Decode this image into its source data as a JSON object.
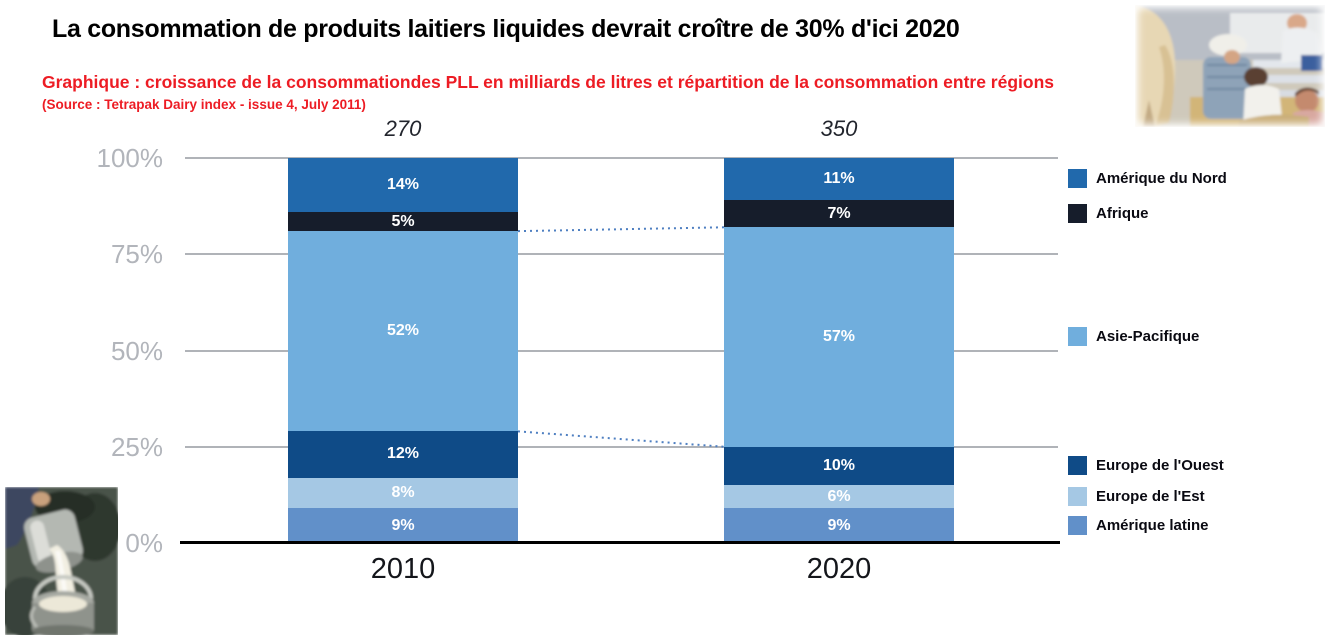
{
  "title": "La consommation de produits laitiers liquides devrait croître de 30% d'ici 2020",
  "subtitle": "Graphique : croissance de la consommationdes PLL en milliards de litres et répartition de la consommation entre régions",
  "source": "(Source : Tetrapak Dairy index - issue 4, July 2011)",
  "images": {
    "top_right": "farm-milking-photo",
    "bottom_left": "milk-pail-photo"
  },
  "chart_data": {
    "type": "bar",
    "subtype": "stacked-100-percent",
    "title": "",
    "categories": [
      "2010",
      "2020"
    ],
    "bar_totals": [
      "270",
      "350"
    ],
    "series": [
      {
        "name": "Amérique du Nord",
        "color": "#2169AC",
        "values": [
          14,
          11
        ]
      },
      {
        "name": "Afrique",
        "color": "#161D2B",
        "values": [
          5,
          7
        ]
      },
      {
        "name": "Asie-Pacifique",
        "color": "#70AEDD",
        "values": [
          52,
          57
        ]
      },
      {
        "name": "Europe de l'Ouest",
        "color": "#0F4B87",
        "values": [
          12,
          10
        ]
      },
      {
        "name": "Europe de l'Est",
        "color": "#A5C8E4",
        "values": [
          8,
          6
        ]
      },
      {
        "name": "Amérique latine",
        "color": "#6190C9",
        "values": [
          9,
          9
        ]
      }
    ],
    "stack_order_note": "series listed top-to-bottom of stack",
    "y_ticks": [
      {
        "label": "100%",
        "value": 100
      },
      {
        "label": "75%",
        "value": 75
      },
      {
        "label": "50%",
        "value": 50
      },
      {
        "label": "25%",
        "value": 25
      },
      {
        "label": "0%",
        "value": 0
      }
    ],
    "ylim": [
      0,
      100
    ],
    "grid": true,
    "legend_position": "right",
    "connector_series": "Asie-Pacifique",
    "colors": {
      "gridline": "#B0B3B8",
      "axis": "#000000",
      "tick_label": "#B2B5BB",
      "connector": "#4E7FC1",
      "value_label": "#FFFFFF",
      "heading_red": "#ED1C24"
    }
  }
}
